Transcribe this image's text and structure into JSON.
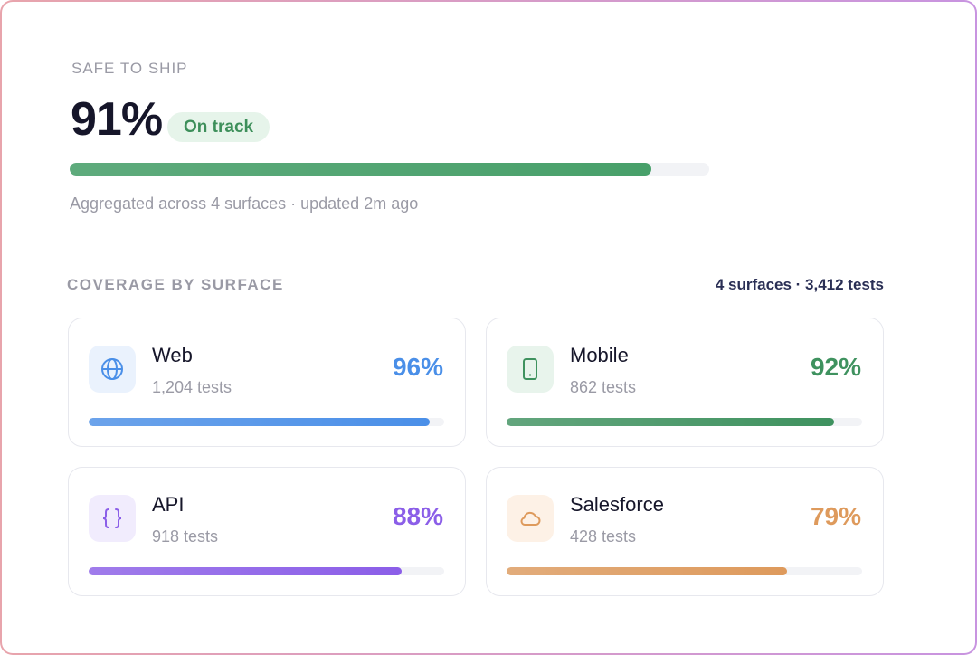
{
  "header": {
    "label": "SAFE TO SHIP",
    "score": {
      "value": 91,
      "label": "91%"
    },
    "status": "On track",
    "color": "#48a06a",
    "footnote": "Aggregated across 4 surfaces · updated 2m ago"
  },
  "coverage": {
    "title": "COVERAGE BY SURFACE",
    "summary": "4 surfaces · 3,412 tests",
    "surfaces": [
      {
        "name": "Web",
        "tests": "1,204 tests",
        "percent": {
          "value": 96,
          "label": "96%"
        },
        "color": "#4a8fe8",
        "tint": "#eaf2fd"
      },
      {
        "name": "Mobile",
        "tests": "862 tests",
        "percent": {
          "value": 92,
          "label": "92%"
        },
        "color": "#3f925f",
        "tint": "#e8f4ec"
      },
      {
        "name": "API",
        "tests": "918 tests",
        "percent": {
          "value": 88,
          "label": "88%"
        },
        "color": "#8b5ee8",
        "tint": "#f1ecfd"
      },
      {
        "name": "Salesforce",
        "tests": "428 tests",
        "percent": {
          "value": 79,
          "label": "79%"
        },
        "color": "#de9a5c",
        "tint": "#fdf1e6"
      }
    ]
  }
}
